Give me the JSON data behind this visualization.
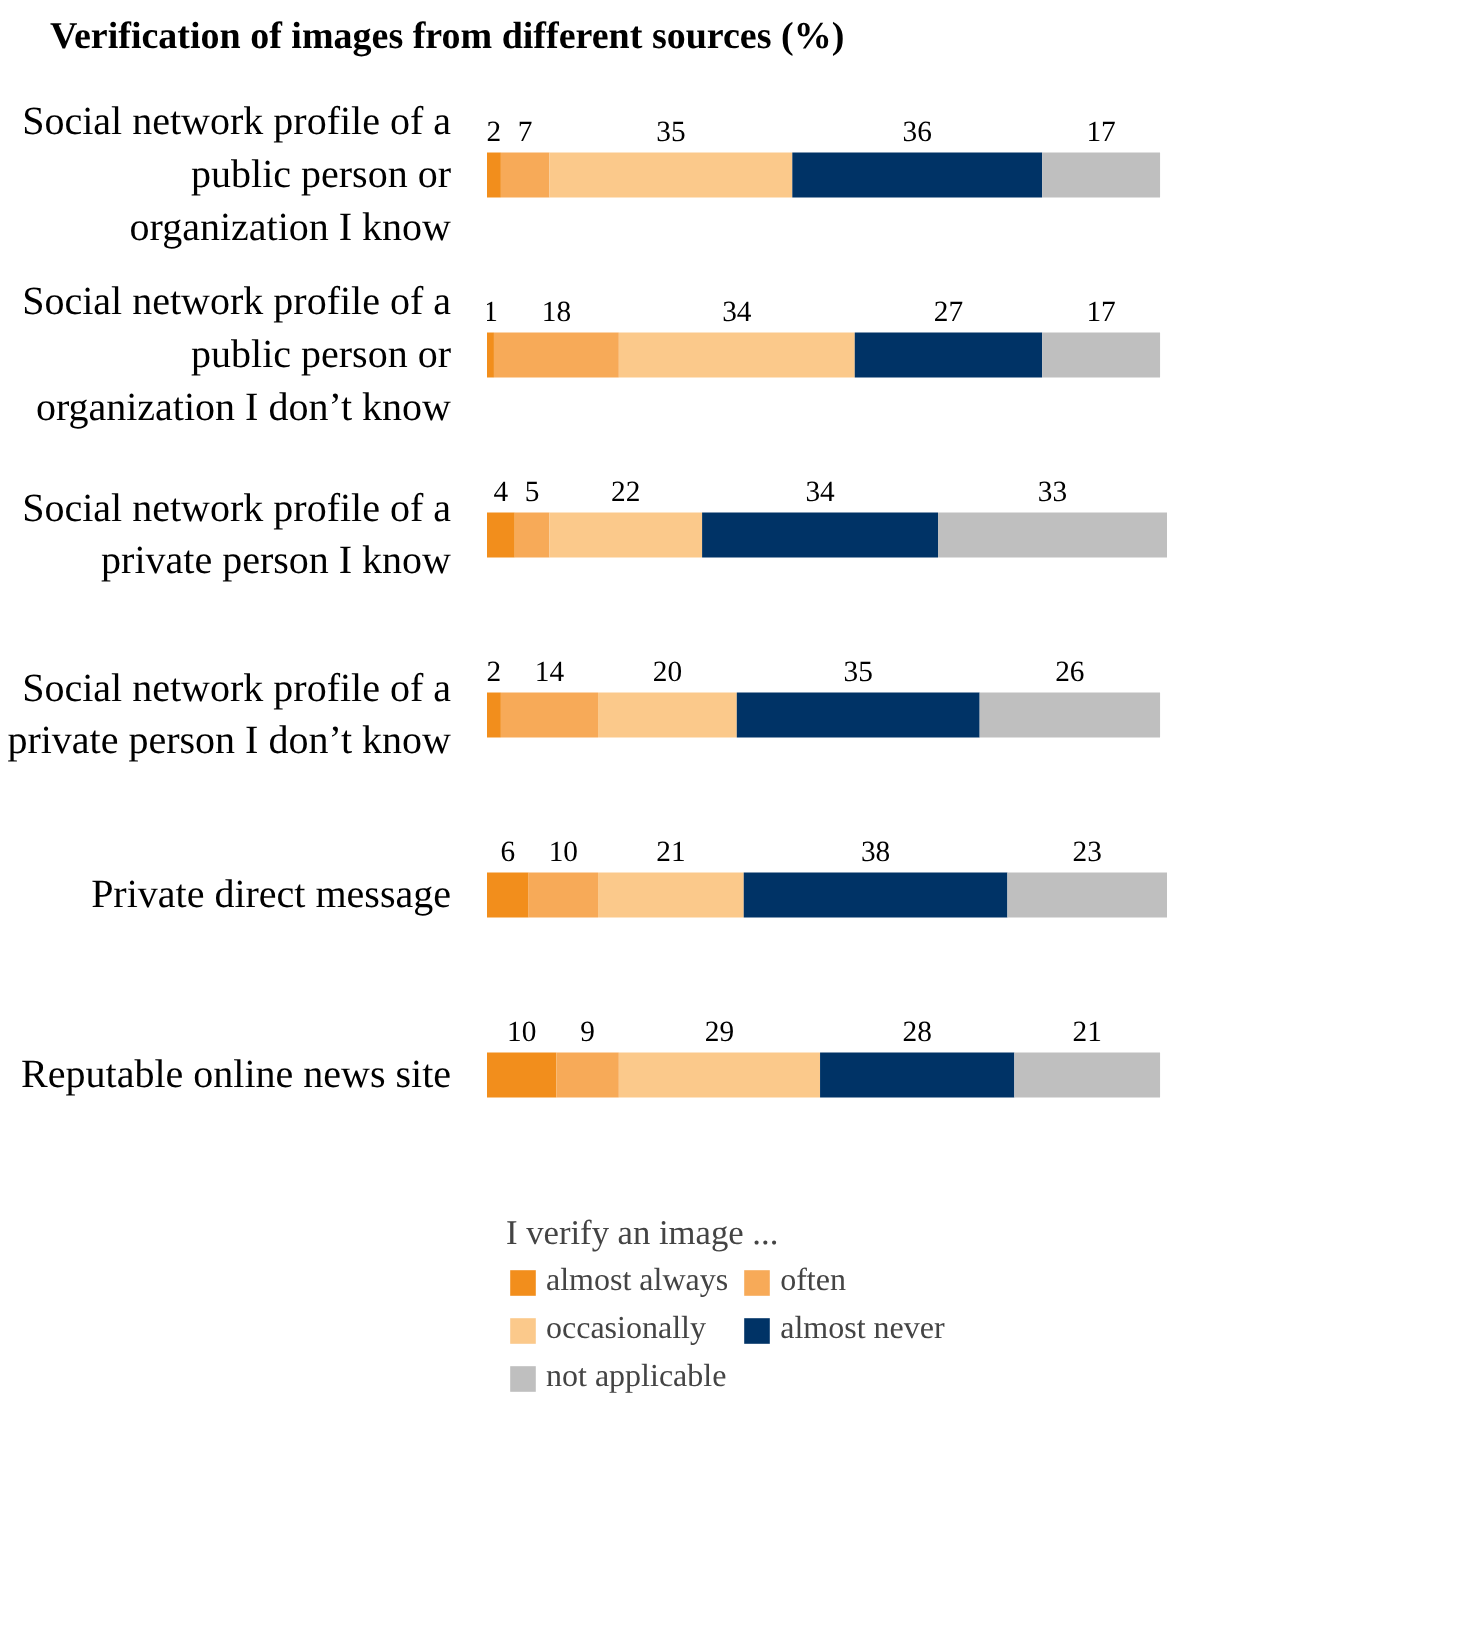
{
  "chart_data": {
    "type": "bar",
    "orientation": "horizontal",
    "stacked": true,
    "title": "Verification of images from different sources (%)",
    "legend_title": "I verify an image ...",
    "categories": [
      "Social network profile of a public person or organization I know",
      "Social network profile of a public person or organization I don’t know",
      "Social network profile of a private person I know",
      "Social network profile of a private person I don’t know",
      "Private direct message",
      "Reputable online news site"
    ],
    "series": [
      {
        "name": "almost always",
        "color": "#f28e1c",
        "values": [
          2,
          1,
          4,
          2,
          6,
          10
        ]
      },
      {
        "name": "often",
        "color": "#f7aa58",
        "values": [
          7,
          18,
          5,
          14,
          10,
          9
        ]
      },
      {
        "name": "occasionally",
        "color": "#fbc98b",
        "values": [
          35,
          34,
          22,
          20,
          21,
          29
        ]
      },
      {
        "name": "almost never",
        "color": "#003366",
        "values": [
          36,
          27,
          34,
          35,
          38,
          28
        ]
      },
      {
        "name": "not applicable",
        "color": "#bfbfbf",
        "values": [
          17,
          17,
          33,
          26,
          23,
          21
        ]
      }
    ],
    "data_labels": true,
    "legend": "bottom",
    "tick_labels": "y"
  }
}
